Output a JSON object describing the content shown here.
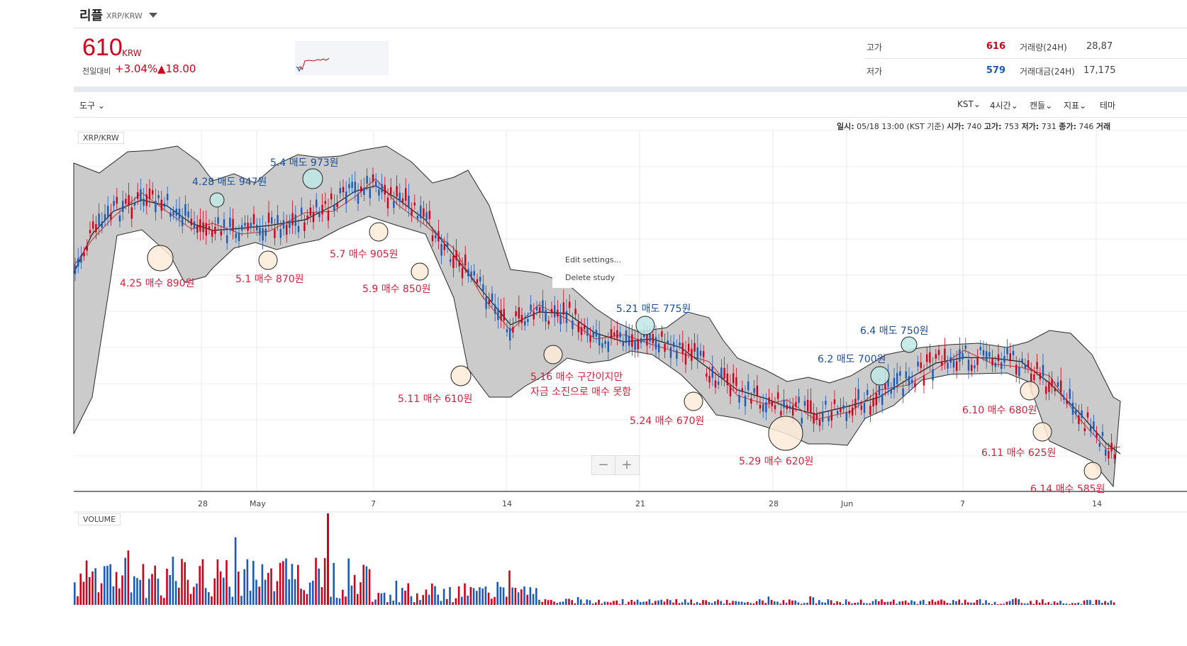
{
  "header": {
    "coin_name": "리플",
    "pair": "XRP/KRW",
    "price": "610",
    "price_unit": "KRW",
    "change_label": "전일대비",
    "change_pct": "+3.04%",
    "change_abs": "▲18.00",
    "stats": {
      "high_label": "고가",
      "high_value": "616",
      "low_label": "저가",
      "low_value": "579",
      "vol_label": "거래량(24H)",
      "vol_value": "28,87",
      "amt_label": "거래대금(24H)",
      "amt_value": "17,175"
    },
    "colors": {
      "up": "#d0021b",
      "down": "#1b5bb5"
    }
  },
  "toolbar": {
    "tools_label": "도구",
    "timezone": "KST",
    "interval": "4시간",
    "candle": "캔들",
    "indicator": "지표",
    "theme": "테마"
  },
  "info": {
    "date_label": "일시:",
    "date_value": "05/18 13:00 (KST 기준)",
    "open_label": "시가:",
    "open_value": "740",
    "high_label": "고가:",
    "high_value": "753",
    "low_label": "저가:",
    "low_value": "731",
    "close_label": "종가:",
    "close_value": "746",
    "vol_label": "거래"
  },
  "chart": {
    "symbol_tag": "XRP/KRW",
    "volume_tag": "VOLUME",
    "x_ticks": [
      "28",
      "May",
      "7",
      "14",
      "21",
      "28",
      "Jun",
      "7",
      "14"
    ],
    "context_menu": [
      "Edit settings...",
      "Delete study"
    ],
    "zoom_out": "−",
    "zoom_in": "+",
    "annotations": [
      {
        "text": "4.28 매도 947원",
        "kind": "sell"
      },
      {
        "text": "5.4 매도 973원",
        "kind": "sell"
      },
      {
        "text": "4.25 매수 890원",
        "kind": "buy"
      },
      {
        "text": "5.1 매수 870원",
        "kind": "buy"
      },
      {
        "text": "5.7 매수 905원",
        "kind": "buy"
      },
      {
        "text": "5.9 매수 850원",
        "kind": "buy"
      },
      {
        "text": "5.11 매수 610원",
        "kind": "buy"
      },
      {
        "text": "5.16 매수 구간이지만",
        "kind": "note"
      },
      {
        "text": "자금 소진으로 매수 못함",
        "kind": "note"
      },
      {
        "text": "5.21 매도 775원",
        "kind": "sell"
      },
      {
        "text": "5.24 매수 670원",
        "kind": "buy"
      },
      {
        "text": "5.29 매수 620원",
        "kind": "buy"
      },
      {
        "text": "6.2 매도 700원",
        "kind": "sell"
      },
      {
        "text": "6.4 매도 750원",
        "kind": "sell"
      },
      {
        "text": "6.10 매수 680원",
        "kind": "buy"
      },
      {
        "text": "6.11 매수 625원",
        "kind": "buy"
      },
      {
        "text": "6.14 매수 585원",
        "kind": "buy"
      }
    ]
  }
}
